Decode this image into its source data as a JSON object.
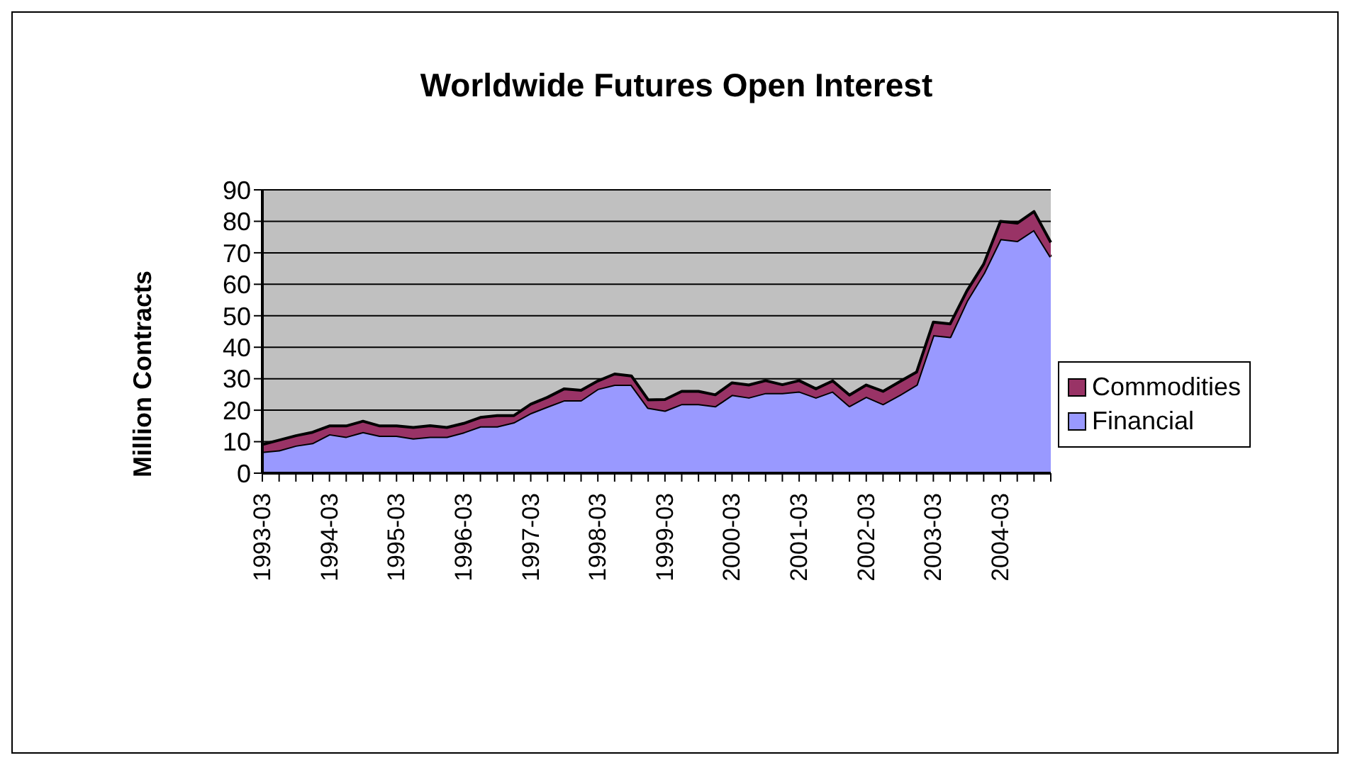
{
  "chart_data": {
    "type": "area",
    "title": "Worldwide Futures Open Interest",
    "ylabel": "Million Contracts",
    "categories": [
      "1993-03",
      null,
      null,
      null,
      "1994-03",
      null,
      null,
      null,
      "1995-03",
      null,
      null,
      null,
      "1996-03",
      null,
      null,
      null,
      "1997-03",
      null,
      null,
      null,
      "1998-03",
      null,
      null,
      null,
      "1999-03",
      null,
      null,
      null,
      "2000-03",
      null,
      null,
      null,
      "2001-03",
      null,
      null,
      null,
      "2002-03",
      null,
      null,
      null,
      "2003-03",
      null,
      null,
      null,
      "2004-03",
      null,
      null,
      null
    ],
    "series": [
      {
        "name": "Financial",
        "color": "#9999ff",
        "values": [
          6.8,
          7.3,
          8.8,
          9.6,
          12.4,
          11.6,
          13.1,
          11.9,
          11.9,
          11.1,
          11.6,
          11.6,
          13.0,
          14.9,
          14.9,
          16.2,
          19.1,
          21.2,
          23.2,
          23.2,
          26.8,
          28.1,
          28.1,
          20.8,
          19.9,
          22.0,
          22.0,
          21.3,
          24.9,
          24.1,
          25.5,
          25.5,
          26.0,
          24.1,
          26.0,
          21.4,
          24.3,
          22.0,
          24.9,
          28.1,
          43.9,
          43.3,
          54.8,
          63.5,
          74.4,
          73.8,
          77.3,
          68.7
        ]
      },
      {
        "name": "Commodities",
        "color": "#993366",
        "values": [
          2.3,
          3.2,
          3.1,
          3.4,
          2.6,
          3.4,
          3.4,
          3.1,
          3.1,
          3.4,
          3.5,
          2.9,
          2.8,
          2.8,
          3.4,
          2.1,
          2.8,
          2.9,
          3.6,
          3.1,
          2.5,
          3.4,
          2.8,
          2.5,
          3.5,
          4.0,
          4.0,
          3.6,
          3.8,
          3.9,
          3.9,
          2.6,
          3.4,
          2.7,
          3.3,
          3.4,
          3.7,
          4.0,
          4.2,
          4.0,
          4.1,
          4.1,
          3.1,
          2.9,
          5.6,
          5.6,
          5.8,
          4.6
        ]
      }
    ],
    "stacked": true,
    "ylim": [
      0,
      90
    ],
    "yticks": [
      0,
      10,
      20,
      30,
      40,
      50,
      60,
      70,
      80,
      90
    ],
    "grid": "y",
    "legend": "right"
  }
}
